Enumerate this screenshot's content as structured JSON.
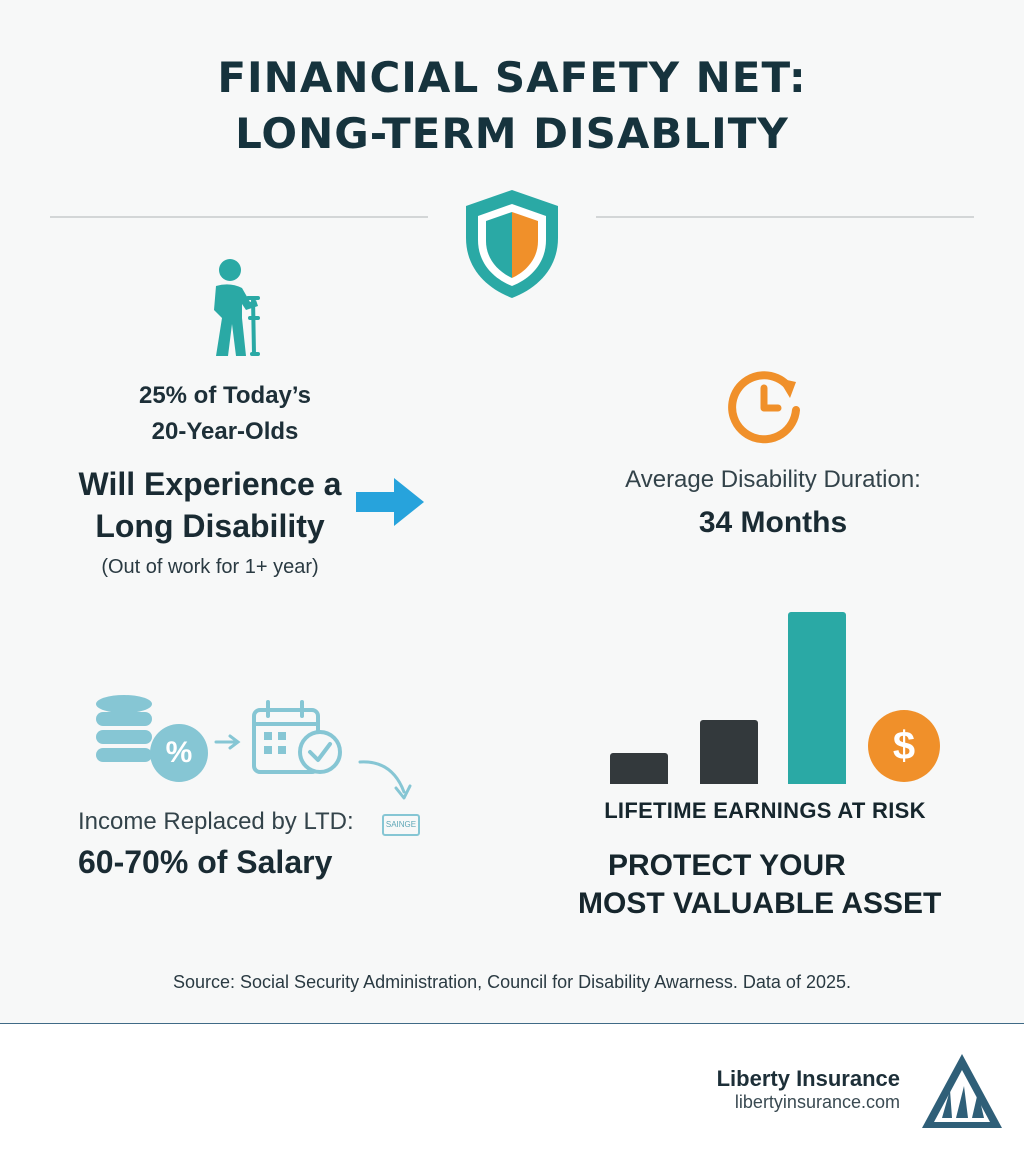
{
  "header": {
    "title_line1": "FINANCIAL SAFETY NET:",
    "title_line2": "LONG-TERM DISABLITY"
  },
  "stat_left": {
    "percent_line1": "25% of Today’s",
    "percent_line2": "20-Year-Olds",
    "headline_line1": "Will Experience a",
    "headline_line2": "Long Disability",
    "note": "(Out of work for 1+ year)"
  },
  "stat_right": {
    "label": "Average Disability Duration:",
    "value": "34 Months"
  },
  "income": {
    "label": "Income Replaced by LTD:",
    "value": "60-70% of Salary",
    "percent_badge": "%",
    "tag": "SAINGE"
  },
  "earnings": {
    "label": "LIFETIME EARNINGS AT RISK",
    "dollar_badge": "$",
    "bars": [
      {
        "level": 0.18,
        "color": "#33393c"
      },
      {
        "level": 0.37,
        "color": "#33393c"
      },
      {
        "level": 1.0,
        "color": "#2aa9a5"
      }
    ]
  },
  "cta": {
    "line1": "PROTECT YOUR",
    "line2": "MOST VALUABLE ASSET"
  },
  "source": "Source: Social Security Administration, Council for Disability Awarness. Data of 2025.",
  "brand": {
    "name": "Liberty Insurance",
    "url": "libertyinsurance.com"
  },
  "colors": {
    "teal": "#2aa9a5",
    "orange": "#f0902a",
    "blue_arrow": "#27a3dc",
    "light_blue": "#86c6d4",
    "navy": "#16333d"
  },
  "icons": [
    "shield-icon",
    "person-with-crutch-icon",
    "clock-refresh-icon",
    "arrow-right-icon",
    "coin-stack-icon",
    "percent-icon",
    "calendar-check-icon",
    "dollar-icon",
    "triangle-logo-icon"
  ]
}
